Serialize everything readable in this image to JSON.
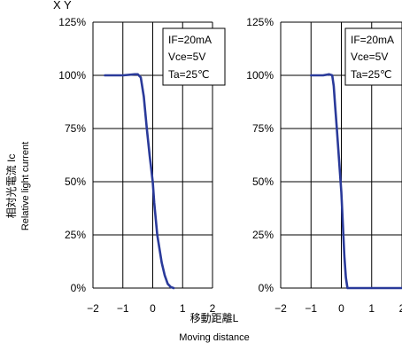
{
  "header_text": "X Y",
  "y_axis_label": {
    "line1": "相対光電流 Ic",
    "line2": "Relative light current"
  },
  "x_axis_label": {
    "line1": "移動距離L",
    "line2": "Moving distance"
  },
  "colors": {
    "series": "#2a3a9a",
    "grid": "#000000"
  },
  "chart_data": [
    {
      "type": "line",
      "title": "X",
      "conditions": [
        "IF=20mA",
        "Vce=5V",
        "Ta=25℃"
      ],
      "xlim": [
        -2,
        2
      ],
      "ylim": [
        0,
        125
      ],
      "x_ticks": [
        "−2",
        "−1",
        "0",
        "1",
        "2"
      ],
      "y_ticks": [
        "0%",
        "25%",
        "50%",
        "75%",
        "100%",
        "125%"
      ],
      "grid": true,
      "series": [
        {
          "x": [
            -1.6,
            -1.0,
            -0.6,
            -0.5,
            -0.4,
            -0.3,
            -0.2,
            -0.1,
            0.0,
            0.05,
            0.15,
            0.3,
            0.4,
            0.5,
            0.6,
            0.7
          ],
          "y": [
            100,
            100,
            100.5,
            100.5,
            99,
            90,
            75,
            62,
            50,
            40,
            25,
            12,
            6,
            2,
            0.5,
            0
          ]
        }
      ]
    },
    {
      "type": "line",
      "title": "Y",
      "conditions": [
        "IF=20mA",
        "Vce=5V",
        "Ta=25℃"
      ],
      "xlim": [
        -2,
        2
      ],
      "ylim": [
        0,
        125
      ],
      "x_ticks": [
        "−2",
        "−1",
        "0",
        "1",
        "2"
      ],
      "y_ticks": [
        "0%",
        "25%",
        "50%",
        "75%",
        "100%",
        "125%"
      ],
      "grid": true,
      "series": [
        {
          "x": [
            -1.0,
            -0.6,
            -0.4,
            -0.3,
            -0.25,
            -0.2,
            -0.15,
            -0.1,
            -0.05,
            0.0,
            0.05,
            0.1,
            0.15,
            0.2,
            0.5,
            1.0,
            2.0
          ],
          "y": [
            100,
            100,
            100.5,
            100,
            95,
            85,
            75,
            65,
            55,
            45,
            30,
            15,
            5,
            0,
            0,
            0,
            0
          ]
        }
      ]
    }
  ]
}
